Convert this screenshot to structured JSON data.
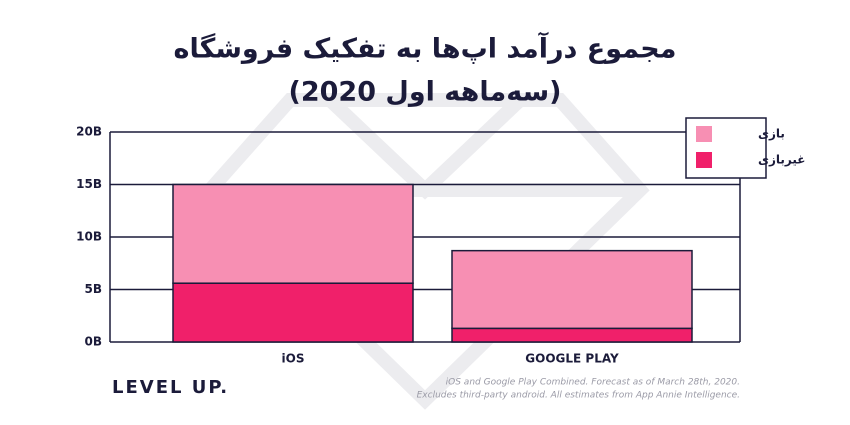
{
  "chart_data": {
    "type": "stacked_bar",
    "title": [
      "مجموع درآمد اپ‌ها به تفکیک فروشگاه",
      "(سه‌ماهه اول 2020)"
    ],
    "categories": [
      "iOS",
      "GOOGLE PLAY"
    ],
    "series": [
      {
        "name": "غیربازی",
        "color": "#f0206a",
        "values": [
          5.6,
          1.3
        ]
      },
      {
        "name": "بازی",
        "color": "#f78fb3",
        "values": [
          9.4,
          7.4
        ]
      }
    ],
    "ylim": [
      0,
      20
    ],
    "yticks": [
      {
        "value": 0,
        "label": "0B"
      },
      {
        "value": 5,
        "label": "5B"
      },
      {
        "value": 10,
        "label": "10B"
      },
      {
        "value": 15,
        "label": "15B"
      },
      {
        "value": 20,
        "label": "20B"
      }
    ],
    "grid": true,
    "legend": "top-right",
    "brand": "LEVEL UP.",
    "note": [
      "iOS and Google Play Combined. Forecast as of March 28th, 2020.",
      "Excludes third-party android. All estimates from App Annie Intelligence."
    ]
  }
}
